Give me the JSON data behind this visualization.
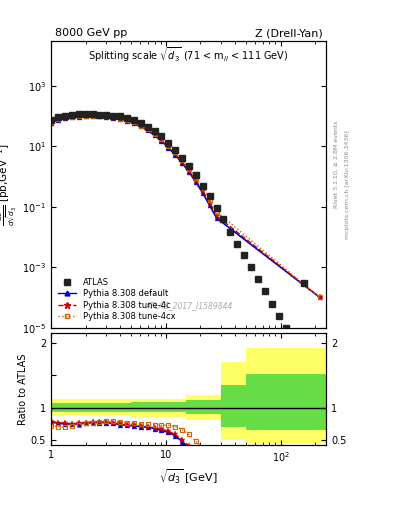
{
  "top_label_left": "8000 GeV pp",
  "top_label_right": "Z (Drell-Yan)",
  "watermark": "ATLAS_2017_I1589844",
  "xlim": [
    1.0,
    250.0
  ],
  "ylim_main": [
    1e-05,
    30000.0
  ],
  "ylim_ratio": [
    0.42,
    2.15
  ],
  "atlas_x": [
    1.0,
    1.15,
    1.32,
    1.52,
    1.74,
    2.0,
    2.3,
    2.64,
    3.03,
    3.48,
    4.0,
    4.59,
    5.27,
    6.05,
    6.95,
    7.98,
    9.16,
    10.52,
    12.08,
    13.87,
    15.92,
    18.28,
    21.0,
    24.11,
    27.7,
    31.81,
    36.53,
    41.95,
    48.17,
    55.32,
    63.53,
    72.97,
    83.82,
    96.27,
    110.58,
    160.0
  ],
  "atlas_y": [
    72,
    90,
    102,
    110,
    112,
    113,
    112,
    111,
    108,
    103,
    96,
    85,
    73,
    58,
    44,
    32,
    21,
    13,
    7.5,
    4.2,
    2.2,
    1.1,
    0.5,
    0.22,
    0.09,
    0.038,
    0.015,
    0.006,
    0.0025,
    0.001,
    0.0004,
    0.00016,
    6e-05,
    2.5e-05,
    1e-05,
    0.0003
  ],
  "pythia_default_x": [
    1.0,
    1.15,
    1.32,
    1.52,
    1.74,
    2.0,
    2.3,
    2.64,
    3.03,
    3.48,
    4.0,
    4.59,
    5.27,
    6.05,
    6.95,
    7.98,
    9.16,
    10.52,
    12.08,
    13.87,
    15.92,
    18.28,
    21.0,
    24.11,
    27.7,
    220.0
  ],
  "pythia_default_y": [
    58,
    75,
    86,
    92,
    95,
    97,
    97,
    96,
    93,
    87,
    79,
    69,
    58,
    45,
    33,
    23,
    15,
    9.0,
    5.2,
    2.8,
    1.4,
    0.65,
    0.28,
    0.11,
    0.042,
    0.0001
  ],
  "pythia_4c_x": [
    1.0,
    1.15,
    1.32,
    1.52,
    1.74,
    2.0,
    2.3,
    2.64,
    3.03,
    3.48,
    4.0,
    4.59,
    5.27,
    6.05,
    6.95,
    7.98,
    9.16,
    10.52,
    12.08,
    13.87,
    15.92,
    18.28,
    21.0,
    24.11,
    27.7,
    220.0
  ],
  "pythia_4c_y": [
    59,
    76,
    87,
    93,
    96,
    98,
    98,
    97,
    94,
    88,
    80,
    70,
    59,
    46,
    34,
    24,
    15.5,
    9.5,
    5.5,
    3.0,
    1.5,
    0.72,
    0.32,
    0.13,
    0.05,
    0.0001
  ],
  "pythia_4cx_x": [
    1.0,
    1.15,
    1.32,
    1.52,
    1.74,
    2.0,
    2.3,
    2.64,
    3.03,
    3.48,
    4.0,
    4.59,
    5.27,
    6.05,
    6.95,
    7.98,
    9.16,
    10.52,
    12.08,
    13.87,
    15.92,
    18.28,
    21.0,
    24.11,
    27.7,
    220.0
  ],
  "pythia_4cx_y": [
    61,
    78,
    89,
    95,
    98,
    100,
    100,
    99,
    96,
    90,
    82,
    72,
    61,
    48,
    36,
    26,
    17,
    10.5,
    6.2,
    3.5,
    1.8,
    0.88,
    0.4,
    0.17,
    0.068,
    0.0001
  ],
  "ratio_default_x": [
    1.0,
    1.15,
    1.32,
    1.52,
    1.74,
    2.0,
    2.3,
    2.64,
    3.03,
    3.48,
    4.0,
    4.59,
    5.27,
    6.05,
    6.95,
    7.98,
    9.16,
    10.52,
    12.08,
    13.87,
    15.92,
    18.28,
    21.0
  ],
  "ratio_default_y": [
    0.78,
    0.76,
    0.75,
    0.75,
    0.75,
    0.76,
    0.77,
    0.77,
    0.77,
    0.76,
    0.74,
    0.73,
    0.72,
    0.71,
    0.7,
    0.68,
    0.65,
    0.62,
    0.57,
    0.48,
    0.38,
    0.28,
    0.19
  ],
  "ratio_4c_x": [
    1.0,
    1.15,
    1.32,
    1.52,
    1.74,
    2.0,
    2.3,
    2.64,
    3.03,
    3.48,
    4.0,
    4.59,
    5.27,
    6.05,
    6.95,
    7.98,
    9.16,
    10.52,
    12.08,
    13.87,
    15.92,
    18.28,
    21.0
  ],
  "ratio_4c_y": [
    0.79,
    0.77,
    0.76,
    0.75,
    0.76,
    0.77,
    0.78,
    0.78,
    0.78,
    0.77,
    0.76,
    0.74,
    0.73,
    0.72,
    0.71,
    0.69,
    0.67,
    0.64,
    0.59,
    0.51,
    0.41,
    0.31,
    0.22
  ],
  "ratio_4cx_x": [
    1.0,
    1.15,
    1.32,
    1.52,
    1.74,
    2.0,
    2.3,
    2.64,
    3.03,
    3.48,
    4.0,
    4.59,
    5.27,
    6.05,
    6.95,
    7.98,
    9.16,
    10.52,
    12.08,
    13.87,
    15.92,
    18.28,
    21.0,
    24.11
  ],
  "ratio_4cx_y": [
    0.72,
    0.71,
    0.7,
    0.72,
    0.74,
    0.76,
    0.77,
    0.78,
    0.79,
    0.79,
    0.78,
    0.77,
    0.76,
    0.75,
    0.75,
    0.74,
    0.73,
    0.73,
    0.71,
    0.66,
    0.59,
    0.49,
    0.38,
    0.3
  ],
  "green_band_edges": [
    1.0,
    5.0,
    15.0,
    30.0,
    50.0,
    250.0
  ],
  "green_band_lo": [
    0.93,
    0.93,
    0.9,
    0.7,
    0.65,
    0.65
  ],
  "green_band_hi": [
    1.07,
    1.08,
    1.12,
    1.35,
    1.52,
    1.55
  ],
  "yellow_band_edges": [
    1.0,
    5.0,
    15.0,
    30.0,
    50.0,
    250.0
  ],
  "yellow_band_lo": [
    0.87,
    0.86,
    0.81,
    0.5,
    0.45,
    0.45
  ],
  "yellow_band_hi": [
    1.13,
    1.14,
    1.2,
    1.7,
    1.92,
    1.95
  ],
  "color_atlas": "#222222",
  "color_default": "#0000cc",
  "color_4c": "#cc0000",
  "color_4cx": "#cc6600"
}
